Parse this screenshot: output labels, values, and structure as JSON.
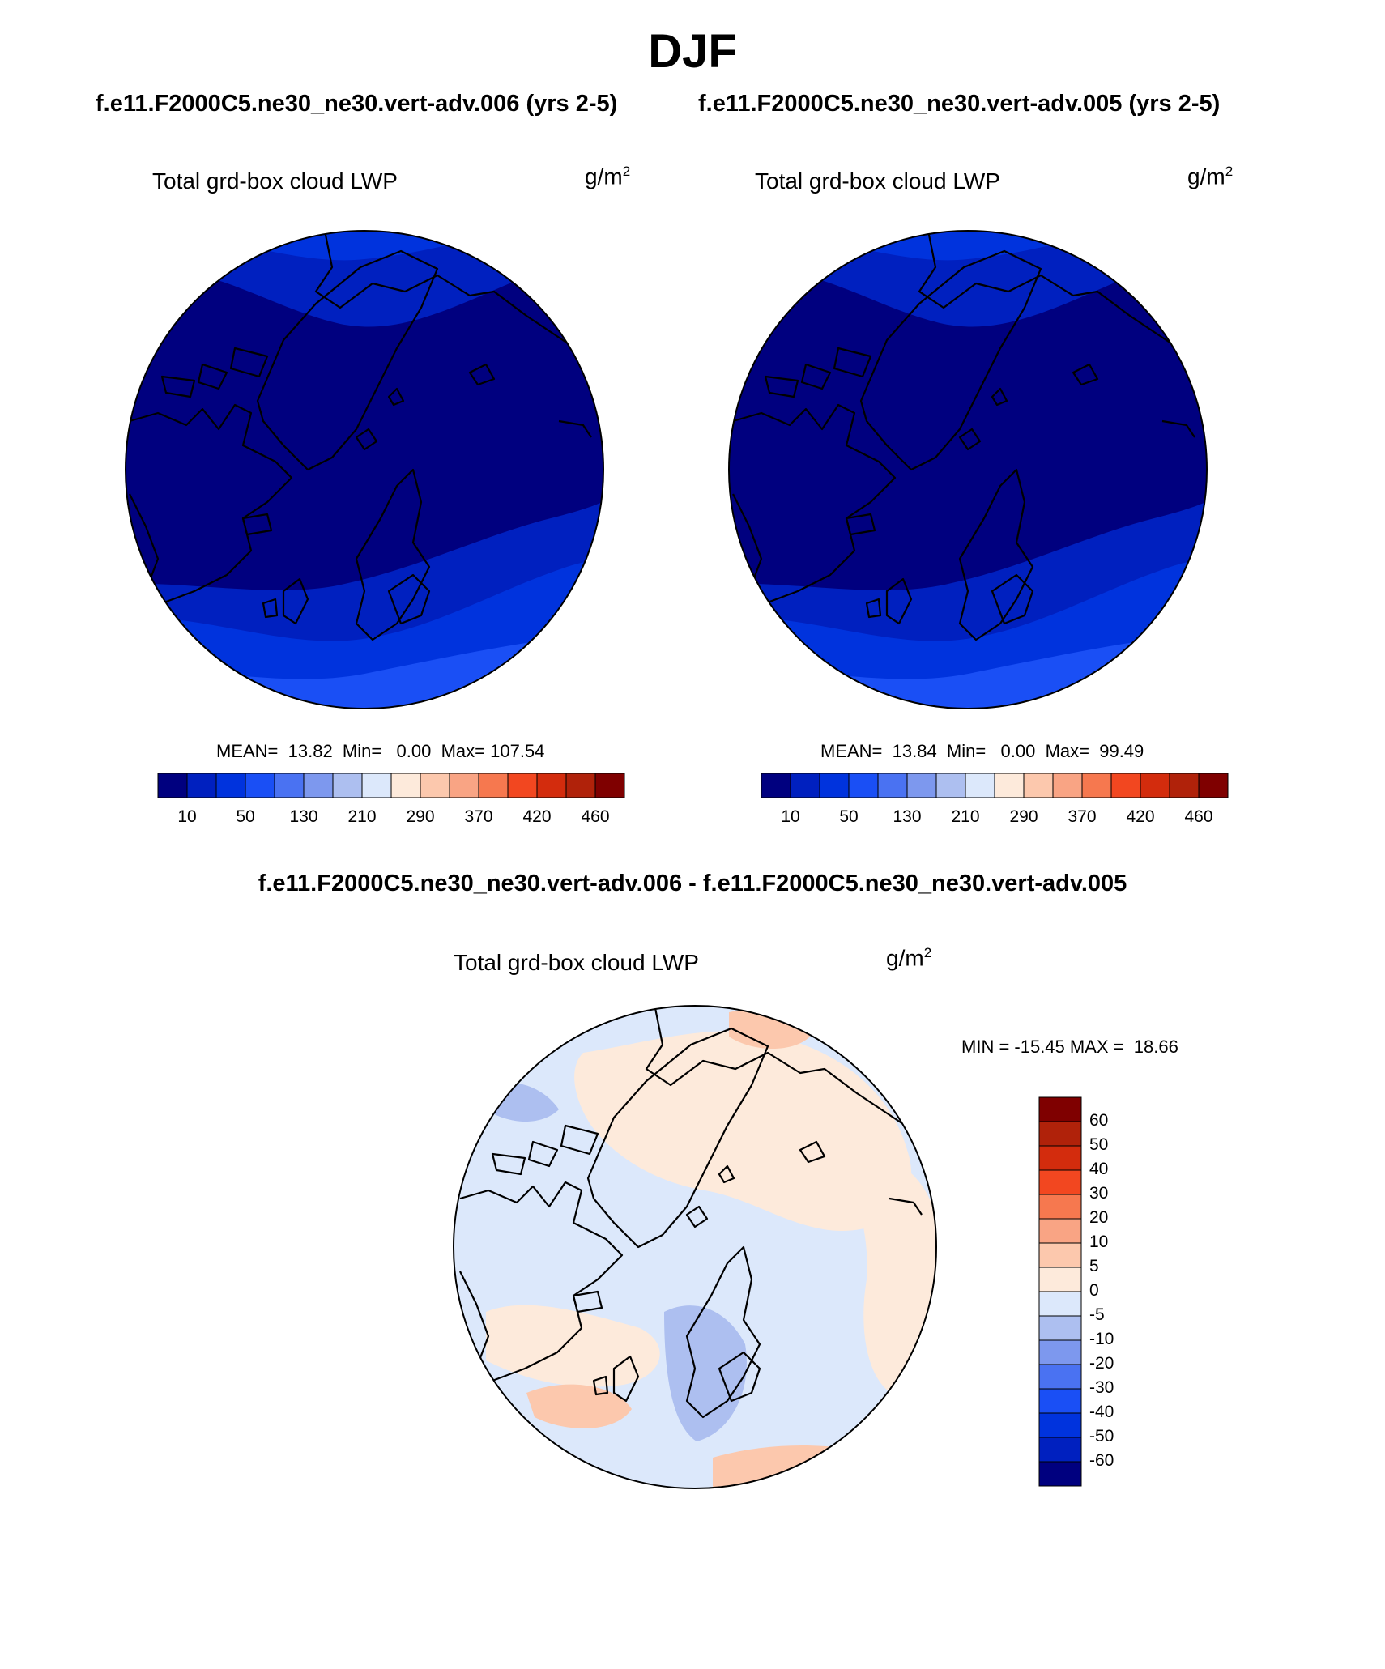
{
  "season": "DJF",
  "case_titles": {
    "left": "f.e11.F2000C5.ne30_ne30.vert-adv.006 (yrs 2-5)",
    "right": "f.e11.F2000C5.ne30_ne30.vert-adv.005 (yrs 2-5)"
  },
  "diff_title": "f.e11.F2000C5.ne30_ne30.vert-adv.006 - f.e11.F2000C5.ne30_ne30.vert-adv.005",
  "panels": [
    {
      "variable": "Total grd-box cloud LWP",
      "units_base": "g/m",
      "units_exp": "2",
      "stats": "MEAN=  13.82  Min=   0.00  Max= 107.54"
    },
    {
      "variable": "Total grd-box cloud LWP",
      "units_base": "g/m",
      "units_exp": "2",
      "stats": "MEAN=  13.84  Min=   0.00  Max=  99.49"
    },
    {
      "variable": "Total grd-box cloud LWP",
      "units_base": "g/m",
      "units_exp": "2",
      "stats": "MIN = -15.45 MAX =  18.66"
    }
  ],
  "colorbar_abs": {
    "colors": [
      "#00007f",
      "#0020bf",
      "#0033dd",
      "#1a4ff5",
      "#4a72f2",
      "#7d98ee",
      "#adbff0",
      "#dce8fb",
      "#fdeadb",
      "#fcc8ad",
      "#f9a484",
      "#f6784f",
      "#f24720",
      "#d32c0d",
      "#b0220a",
      "#7f0000"
    ],
    "tick_labels": [
      "10",
      "50",
      "130",
      "210",
      "290",
      "370",
      "420",
      "460"
    ]
  },
  "colorbar_diff": {
    "colors": [
      "#7f0000",
      "#b0220a",
      "#d32c0d",
      "#f24720",
      "#f6784f",
      "#f9a484",
      "#fcc8ad",
      "#fdeadb",
      "#dce8fb",
      "#adbff0",
      "#7d98ee",
      "#4a72f2",
      "#1a4ff5",
      "#0033dd",
      "#0020bf",
      "#00007f"
    ],
    "tick_labels": [
      "60",
      "50",
      "40",
      "30",
      "20",
      "10",
      "5",
      "0",
      "-5",
      "-10",
      "-20",
      "-30",
      "-40",
      "-50",
      "-60"
    ]
  },
  "map_colors": {
    "abs_background": "#00007f",
    "abs_level_2": "#0020bf",
    "abs_level_3": "#0033dd",
    "abs_level_4": "#1a4ff5",
    "diff_background": "#dce8fb",
    "diff_pos_1": "#fdeadb",
    "diff_pos_2": "#fcc8ad",
    "diff_neg_1": "#adbff0",
    "coastline": "#000000"
  }
}
